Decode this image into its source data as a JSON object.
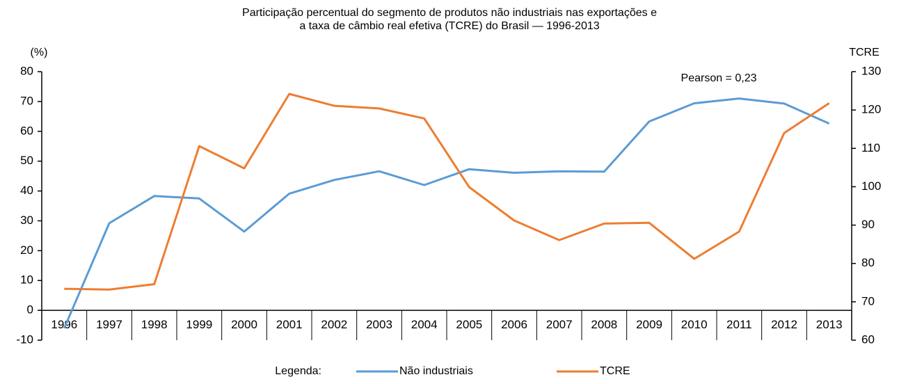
{
  "chart_data": {
    "type": "line",
    "title": [
      "Participação percentual do segmento de produtos não industriais nas exportações e",
      "a taxa de câmbio real efetiva (TCRE) do Brasil — 1996-2013"
    ],
    "y_label": "(%)",
    "y2_label": "TCRE",
    "annotation": "Pearson = 0,23",
    "legend_title": "Legenda:",
    "categories": [
      "1996",
      "1997",
      "1998",
      "1999",
      "2000",
      "2001",
      "2002",
      "2003",
      "2004",
      "2005",
      "2006",
      "2007",
      "2008",
      "2009",
      "2010",
      "2011",
      "2012",
      "2013"
    ],
    "series": [
      {
        "name": "Não industriais",
        "color": "#5b9bd5",
        "values": [
          -6,
          29.2,
          38.3,
          37.5,
          26.4,
          39.1,
          43.7,
          46.6,
          42.0,
          47.3,
          46.1,
          46.6,
          46.5,
          63.3,
          69.4,
          71.0,
          69.3,
          62.6
        ]
      },
      {
        "name": "TCRE",
        "color": "#ed7d31",
        "axis": "y2",
        "values": [
          73.4,
          73.2,
          74.6,
          110.6,
          104.8,
          124.2,
          121.1,
          120.4,
          117.8,
          99.9,
          91.2,
          86.1,
          90.4,
          90.6,
          81.2,
          88.3,
          114.0,
          121.8
        ]
      }
    ],
    "ylim": [
      -10,
      80
    ],
    "yticks": [
      -10,
      0,
      10,
      20,
      30,
      40,
      50,
      60,
      70,
      80
    ],
    "y2lim": [
      60,
      130
    ],
    "y2ticks": [
      60,
      70,
      80,
      90,
      100,
      110,
      120,
      130
    ],
    "legend": "bottom"
  }
}
